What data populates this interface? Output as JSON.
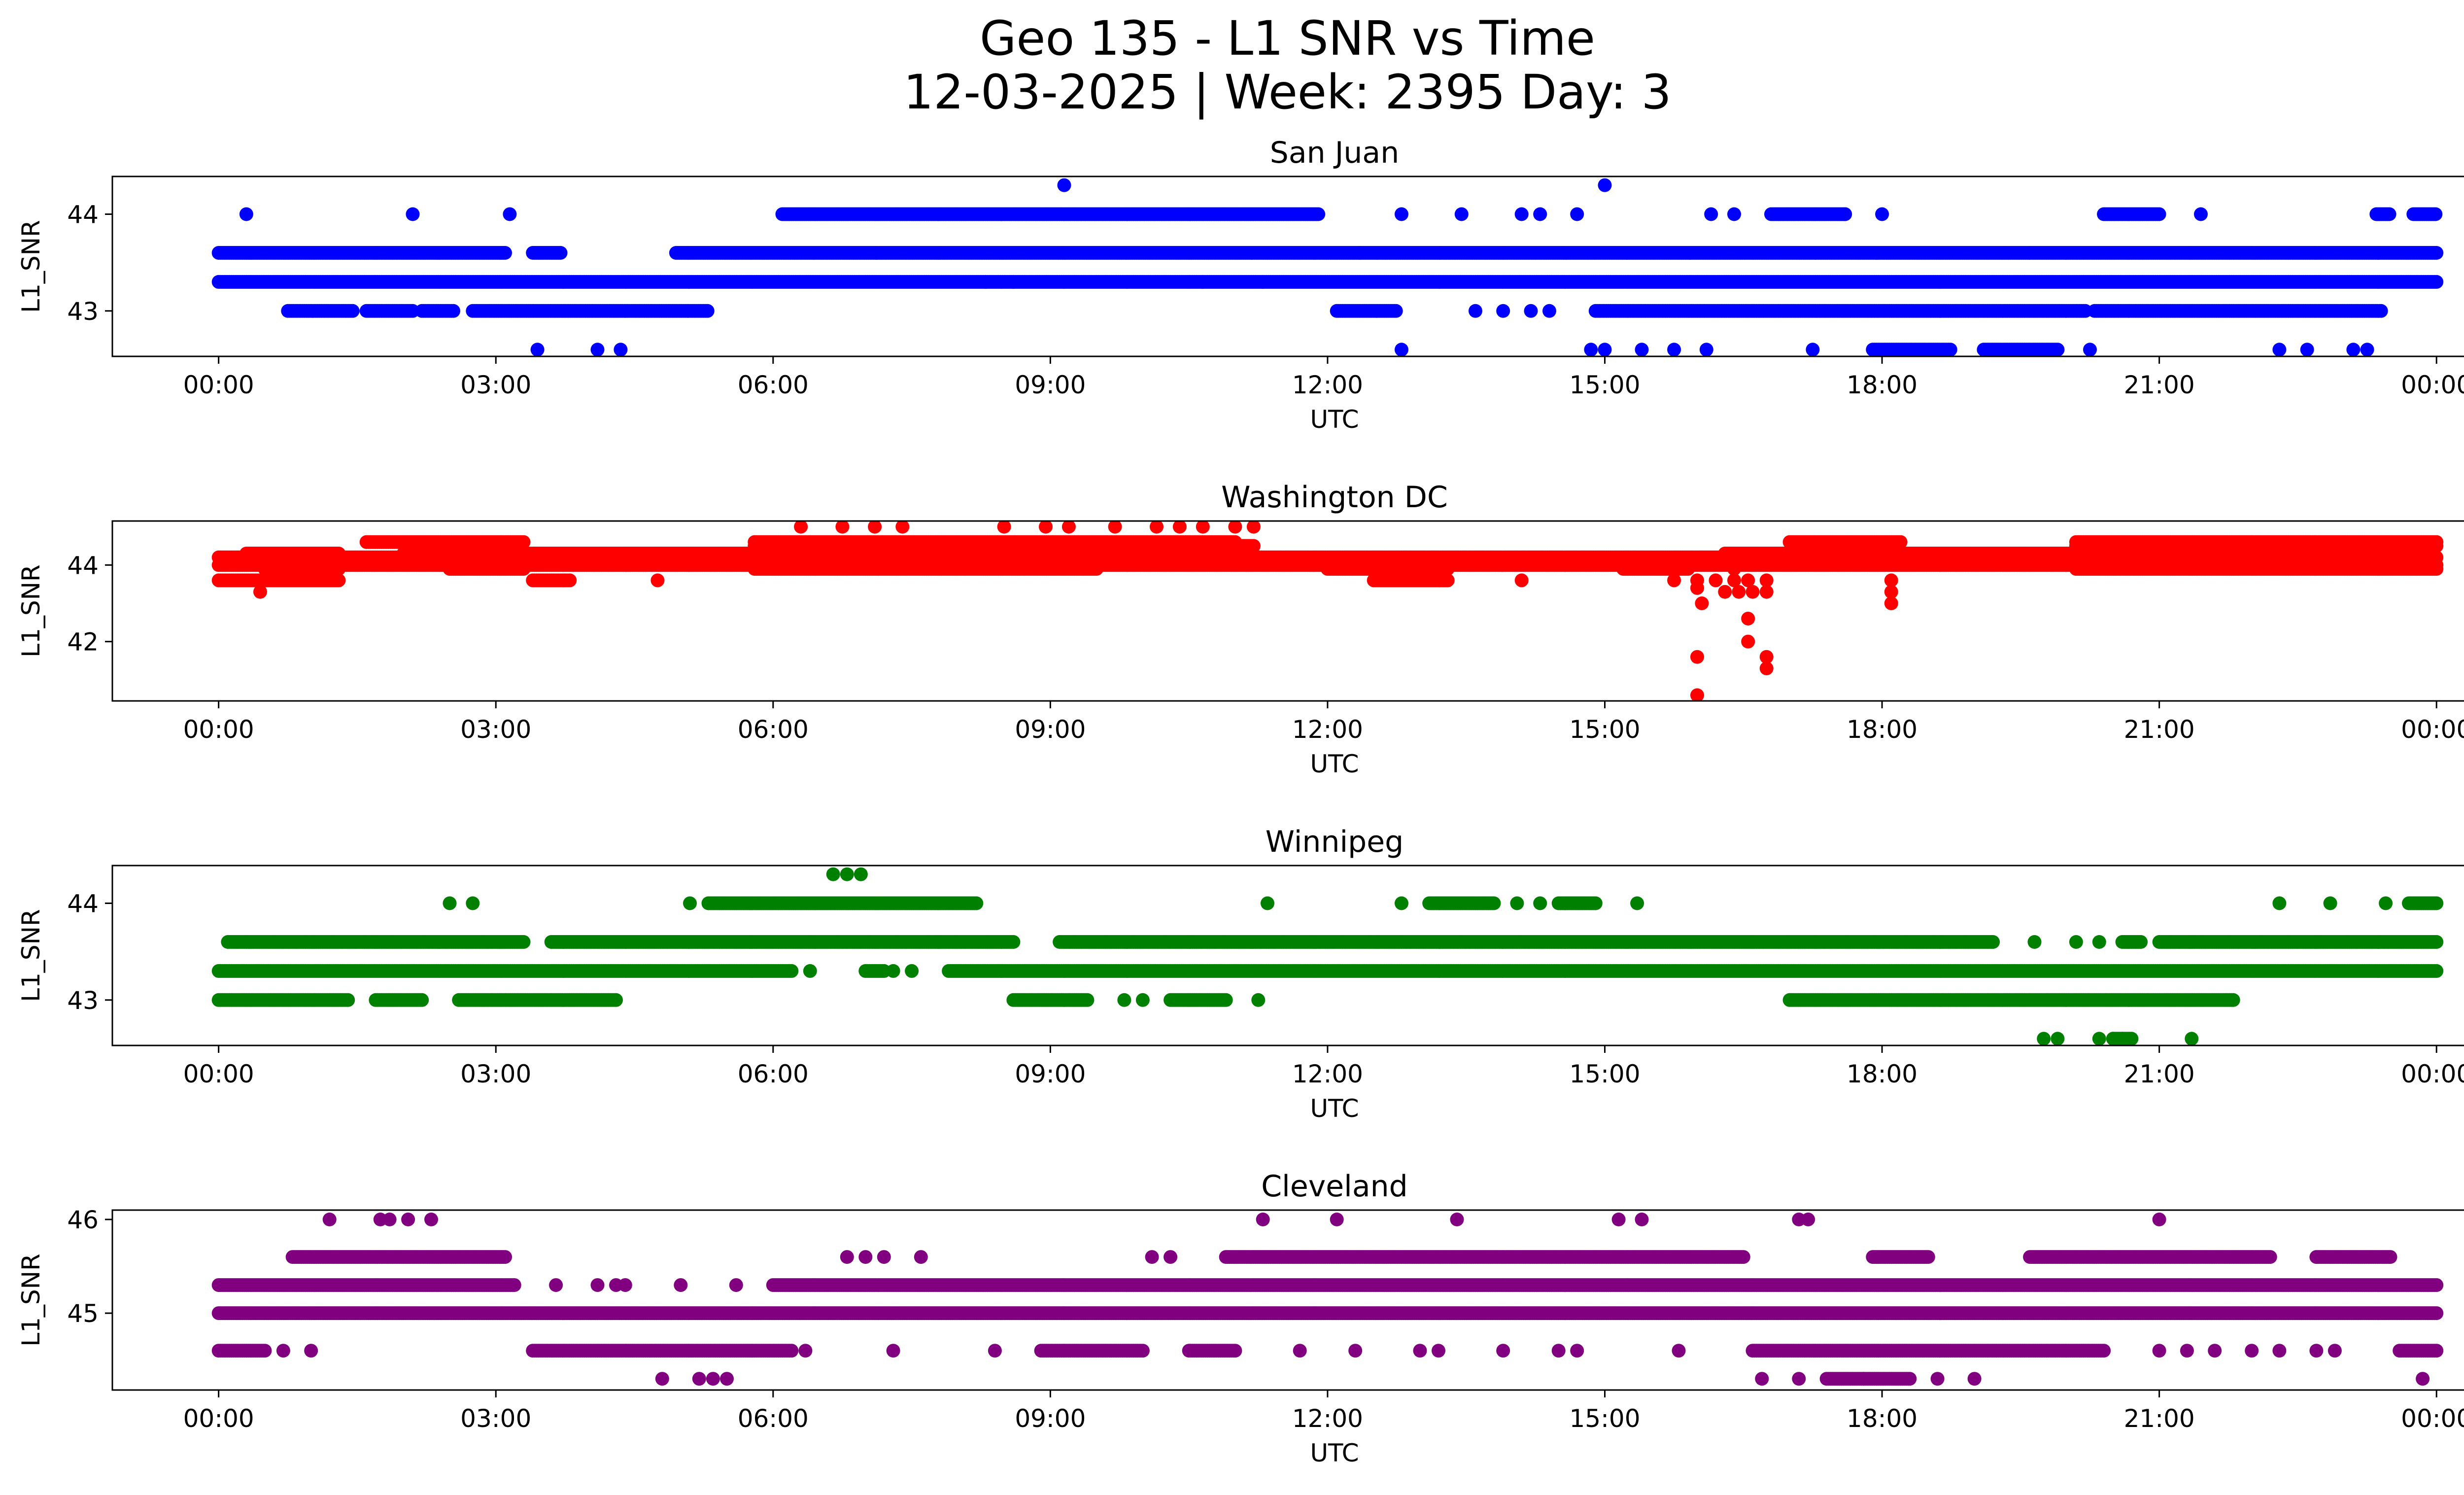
{
  "figure": {
    "title": "Geo 135 - L1 SNR vs Time",
    "subtitle": "12-03-2025 | Week: 2395 Day: 3"
  },
  "chart_data": [
    {
      "type": "scatter",
      "title": "San Juan",
      "xlabel": "UTC",
      "ylabel": "L1_SNR",
      "color": "#0000ff",
      "xticks": [
        "00:00",
        "03:00",
        "06:00",
        "09:00",
        "12:00",
        "15:00",
        "18:00",
        "21:00",
        "00:00"
      ],
      "x_range_hours": [
        -1.15,
        25.3
      ],
      "yticks": [
        43,
        44
      ],
      "ylim": [
        42.53,
        44.39
      ],
      "levels": [
        {
          "y": 43.3,
          "segments": [
            [
              0,
              24
            ]
          ]
        },
        {
          "y": 43.6,
          "segments": [
            [
              0,
              3.1
            ],
            [
              3.4,
              3.7
            ],
            [
              4.95,
              12.35
            ],
            [
              12.35,
              19.6
            ],
            [
              19.6,
              24
            ]
          ]
        },
        {
          "y": 43.0,
          "segments": [
            [
              0.75,
              1.45
            ],
            [
              1.6,
              2.1
            ],
            [
              2.2,
              2.55
            ],
            [
              2.75,
              5.3
            ],
            [
              12.1,
              12.75
            ],
            [
              14.9,
              20.2
            ],
            [
              20.3,
              23.4
            ]
          ]
        },
        {
          "y": 44.0,
          "segments": [
            [
              6.1,
              11.9
            ],
            [
              16.8,
              17.6
            ],
            [
              20.4,
              21.0
            ],
            [
              23.35,
              23.5
            ],
            [
              23.75,
              24
            ]
          ]
        },
        {
          "y": 42.6,
          "segments": [
            [
              17.9,
              18.75
            ],
            [
              19.1,
              19.9
            ]
          ]
        }
      ],
      "points": [
        {
          "x": 0.3,
          "y": 44.0
        },
        {
          "x": 2.1,
          "y": 44.0
        },
        {
          "x": 3.15,
          "y": 44.0
        },
        {
          "x": 12.8,
          "y": 44.0
        },
        {
          "x": 13.45,
          "y": 44.0
        },
        {
          "x": 14.1,
          "y": 44.0
        },
        {
          "x": 14.3,
          "y": 44.0
        },
        {
          "x": 14.7,
          "y": 44.0
        },
        {
          "x": 16.15,
          "y": 44.0
        },
        {
          "x": 16.4,
          "y": 44.0
        },
        {
          "x": 17.6,
          "y": 44.0
        },
        {
          "x": 18.0,
          "y": 44.0
        },
        {
          "x": 21.45,
          "y": 44.0
        },
        {
          "x": 9.15,
          "y": 44.3
        },
        {
          "x": 15.0,
          "y": 44.3
        },
        {
          "x": 3.45,
          "y": 42.6
        },
        {
          "x": 4.1,
          "y": 42.6
        },
        {
          "x": 4.35,
          "y": 42.6
        },
        {
          "x": 12.8,
          "y": 42.6
        },
        {
          "x": 14.85,
          "y": 42.6
        },
        {
          "x": 15.0,
          "y": 42.6
        },
        {
          "x": 15.4,
          "y": 42.6
        },
        {
          "x": 15.75,
          "y": 42.6
        },
        {
          "x": 16.1,
          "y": 42.6
        },
        {
          "x": 17.25,
          "y": 42.6
        },
        {
          "x": 20.25,
          "y": 42.6
        },
        {
          "x": 22.3,
          "y": 42.6
        },
        {
          "x": 22.6,
          "y": 42.6
        },
        {
          "x": 23.1,
          "y": 42.6
        },
        {
          "x": 23.25,
          "y": 42.6
        },
        {
          "x": 8.3,
          "y": 43.3
        },
        {
          "x": 8.6,
          "y": 43.3
        },
        {
          "x": 10.65,
          "y": 43.3
        },
        {
          "x": 11.3,
          "y": 43.3
        },
        {
          "x": 13.6,
          "y": 43.0
        },
        {
          "x": 13.9,
          "y": 43.0
        },
        {
          "x": 14.2,
          "y": 43.0
        },
        {
          "x": 14.4,
          "y": 43.0
        }
      ]
    },
    {
      "type": "scatter",
      "title": "Washington DC",
      "xlabel": "UTC",
      "ylabel": "L1_SNR",
      "color": "#ff0000",
      "xticks": [
        "00:00",
        "03:00",
        "06:00",
        "09:00",
        "12:00",
        "15:00",
        "18:00",
        "21:00",
        "00:00"
      ],
      "x_range_hours": [
        -1.15,
        25.3
      ],
      "yticks": [
        42,
        44
      ],
      "ylim": [
        40.45,
        45.15
      ],
      "levels": [
        {
          "y": 44.2,
          "segments": [
            [
              0,
              24
            ]
          ]
        },
        {
          "y": 44.0,
          "segments": [
            [
              0,
              24
            ]
          ]
        },
        {
          "y": 43.9,
          "segments": [
            [
              0.5,
              1.3
            ],
            [
              2.5,
              3.3
            ],
            [
              5.8,
              9.5
            ],
            [
              12.0,
              13.3
            ],
            [
              15.2,
              15.9
            ],
            [
              20.1,
              24
            ]
          ]
        },
        {
          "y": 43.6,
          "segments": [
            [
              0,
              1.3
            ],
            [
              3.4,
              3.8
            ],
            [
              12.5,
              13.3
            ]
          ]
        },
        {
          "y": 44.6,
          "segments": [
            [
              1.6,
              3.3
            ],
            [
              5.8,
              11.0
            ],
            [
              17.0,
              18.2
            ],
            [
              20.1,
              24
            ]
          ]
        },
        {
          "y": 44.5,
          "segments": [
            [
              5.8,
              11.2
            ],
            [
              20.1,
              24
            ]
          ]
        },
        {
          "y": 44.3,
          "segments": [
            [
              0.3,
              1.3
            ],
            [
              2.0,
              5.8
            ],
            [
              16.3,
              20.1
            ]
          ]
        }
      ],
      "points": [
        {
          "x": 0.45,
          "y": 43.3
        },
        {
          "x": 4.75,
          "y": 43.6
        },
        {
          "x": 14.1,
          "y": 43.6
        },
        {
          "x": 15.75,
          "y": 43.6
        },
        {
          "x": 6.3,
          "y": 45.0
        },
        {
          "x": 6.75,
          "y": 45.0
        },
        {
          "x": 7.1,
          "y": 45.0
        },
        {
          "x": 7.4,
          "y": 45.0
        },
        {
          "x": 8.5,
          "y": 45.0
        },
        {
          "x": 8.95,
          "y": 45.0
        },
        {
          "x": 9.2,
          "y": 45.0
        },
        {
          "x": 9.7,
          "y": 45.0
        },
        {
          "x": 10.15,
          "y": 45.0
        },
        {
          "x": 10.4,
          "y": 45.0
        },
        {
          "x": 10.65,
          "y": 45.0
        },
        {
          "x": 11.0,
          "y": 45.0
        },
        {
          "x": 11.2,
          "y": 45.0
        },
        {
          "x": 16.0,
          "y": 43.6
        },
        {
          "x": 16.0,
          "y": 43.4
        },
        {
          "x": 16.05,
          "y": 43.0
        },
        {
          "x": 16.0,
          "y": 41.6
        },
        {
          "x": 16.0,
          "y": 40.6
        },
        {
          "x": 16.2,
          "y": 43.6
        },
        {
          "x": 16.3,
          "y": 43.3
        },
        {
          "x": 16.4,
          "y": 43.6
        },
        {
          "x": 16.45,
          "y": 43.3
        },
        {
          "x": 16.4,
          "y": 43.9
        },
        {
          "x": 16.55,
          "y": 43.6
        },
        {
          "x": 16.55,
          "y": 42.6
        },
        {
          "x": 16.55,
          "y": 42.0
        },
        {
          "x": 16.6,
          "y": 43.3
        },
        {
          "x": 16.75,
          "y": 43.6
        },
        {
          "x": 16.75,
          "y": 43.3
        },
        {
          "x": 16.75,
          "y": 41.6
        },
        {
          "x": 16.75,
          "y": 41.3
        },
        {
          "x": 18.1,
          "y": 43.6
        },
        {
          "x": 18.1,
          "y": 43.3
        },
        {
          "x": 18.1,
          "y": 43.0
        }
      ]
    },
    {
      "type": "scatter",
      "title": "Winnipeg",
      "xlabel": "UTC",
      "ylabel": "L1_SNR",
      "color": "#008000",
      "xticks": [
        "00:00",
        "03:00",
        "06:00",
        "09:00",
        "12:00",
        "15:00",
        "18:00",
        "21:00",
        "00:00"
      ],
      "x_range_hours": [
        -1.15,
        25.3
      ],
      "yticks": [
        43,
        44
      ],
      "ylim": [
        42.53,
        44.39
      ],
      "levels": [
        {
          "y": 43.3,
          "segments": [
            [
              0,
              6.2
            ],
            [
              7.0,
              7.2
            ],
            [
              7.9,
              24
            ]
          ]
        },
        {
          "y": 43.6,
          "segments": [
            [
              0.1,
              3.3
            ],
            [
              3.6,
              8.6
            ],
            [
              9.1,
              19.2
            ],
            [
              20.6,
              20.8
            ],
            [
              21.0,
              24
            ]
          ]
        },
        {
          "y": 43.0,
          "segments": [
            [
              0,
              1.4
            ],
            [
              1.7,
              2.2
            ],
            [
              2.6,
              4.3
            ],
            [
              8.6,
              9.4
            ],
            [
              10.3,
              10.9
            ],
            [
              17.0,
              21.8
            ]
          ]
        },
        {
          "y": 44.0,
          "segments": [
            [
              5.3,
              8.2
            ],
            [
              13.1,
              13.8
            ],
            [
              14.5,
              14.9
            ],
            [
              23.7,
              24
            ]
          ]
        },
        {
          "y": 42.6,
          "segments": [
            [
              20.5,
              20.7
            ]
          ]
        }
      ],
      "points": [
        {
          "x": 2.5,
          "y": 44.0
        },
        {
          "x": 2.75,
          "y": 44.0
        },
        {
          "x": 5.1,
          "y": 44.0
        },
        {
          "x": 11.35,
          "y": 44.0
        },
        {
          "x": 12.8,
          "y": 44.0
        },
        {
          "x": 14.05,
          "y": 44.0
        },
        {
          "x": 14.3,
          "y": 44.0
        },
        {
          "x": 15.35,
          "y": 44.0
        },
        {
          "x": 22.3,
          "y": 44.0
        },
        {
          "x": 22.85,
          "y": 44.0
        },
        {
          "x": 23.45,
          "y": 44.0
        },
        {
          "x": 6.65,
          "y": 44.3
        },
        {
          "x": 6.8,
          "y": 44.3
        },
        {
          "x": 6.95,
          "y": 44.3
        },
        {
          "x": 6.4,
          "y": 43.3
        },
        {
          "x": 7.3,
          "y": 43.3
        },
        {
          "x": 7.5,
          "y": 43.3
        },
        {
          "x": 9.8,
          "y": 43.0
        },
        {
          "x": 10.0,
          "y": 43.0
        },
        {
          "x": 11.25,
          "y": 43.0
        },
        {
          "x": 19.75,
          "y": 42.6
        },
        {
          "x": 19.9,
          "y": 42.6
        },
        {
          "x": 20.35,
          "y": 42.6
        },
        {
          "x": 20.5,
          "y": 42.6
        },
        {
          "x": 20.6,
          "y": 42.6
        },
        {
          "x": 21.35,
          "y": 42.6
        },
        {
          "x": 19.65,
          "y": 43.6
        },
        {
          "x": 20.1,
          "y": 43.6
        },
        {
          "x": 20.35,
          "y": 43.6
        }
      ]
    },
    {
      "type": "scatter",
      "title": "Cleveland",
      "xlabel": "UTC",
      "ylabel": "L1_SNR",
      "color": "#800080",
      "xticks": [
        "00:00",
        "03:00",
        "06:00",
        "09:00",
        "12:00",
        "15:00",
        "18:00",
        "21:00",
        "00:00"
      ],
      "x_range_hours": [
        -1.15,
        25.3
      ],
      "yticks": [
        45,
        46
      ],
      "ylim": [
        44.18,
        46.1
      ],
      "levels": [
        {
          "y": 45.0,
          "segments": [
            [
              0,
              24
            ]
          ]
        },
        {
          "y": 45.3,
          "segments": [
            [
              0,
              3.2
            ],
            [
              6.0,
              24
            ]
          ]
        },
        {
          "y": 45.6,
          "segments": [
            [
              0.8,
              3.1
            ],
            [
              10.9,
              16.5
            ],
            [
              17.9,
              18.5
            ],
            [
              19.6,
              22.2
            ],
            [
              22.7,
              23.5
            ]
          ]
        },
        {
          "y": 44.6,
          "segments": [
            [
              0,
              0.5
            ],
            [
              3.4,
              6.2
            ],
            [
              8.9,
              10.0
            ],
            [
              10.5,
              11.0
            ],
            [
              16.6,
              20.4
            ],
            [
              23.6,
              24
            ]
          ]
        },
        {
          "y": 44.3,
          "segments": [
            [
              17.4,
              18.3
            ]
          ]
        }
      ],
      "points": [
        {
          "x": 1.2,
          "y": 46.0
        },
        {
          "x": 1.75,
          "y": 46.0
        },
        {
          "x": 1.85,
          "y": 46.0
        },
        {
          "x": 2.05,
          "y": 46.0
        },
        {
          "x": 2.3,
          "y": 46.0
        },
        {
          "x": 11.3,
          "y": 46.0
        },
        {
          "x": 12.1,
          "y": 46.0
        },
        {
          "x": 13.4,
          "y": 46.0
        },
        {
          "x": 15.15,
          "y": 46.0
        },
        {
          "x": 15.4,
          "y": 46.0
        },
        {
          "x": 17.1,
          "y": 46.0
        },
        {
          "x": 17.2,
          "y": 46.0
        },
        {
          "x": 21.0,
          "y": 46.0
        },
        {
          "x": 3.65,
          "y": 45.3
        },
        {
          "x": 4.1,
          "y": 45.3
        },
        {
          "x": 4.3,
          "y": 45.3
        },
        {
          "x": 4.4,
          "y": 45.3
        },
        {
          "x": 5.0,
          "y": 45.3
        },
        {
          "x": 5.6,
          "y": 45.3
        },
        {
          "x": 6.8,
          "y": 45.6
        },
        {
          "x": 7.0,
          "y": 45.6
        },
        {
          "x": 7.2,
          "y": 45.6
        },
        {
          "x": 7.6,
          "y": 45.6
        },
        {
          "x": 10.1,
          "y": 45.6
        },
        {
          "x": 10.3,
          "y": 45.6
        },
        {
          "x": 0.7,
          "y": 44.6
        },
        {
          "x": 1.0,
          "y": 44.6
        },
        {
          "x": 6.35,
          "y": 44.6
        },
        {
          "x": 7.3,
          "y": 44.6
        },
        {
          "x": 8.4,
          "y": 44.6
        },
        {
          "x": 11.7,
          "y": 44.6
        },
        {
          "x": 12.3,
          "y": 44.6
        },
        {
          "x": 13.0,
          "y": 44.6
        },
        {
          "x": 13.2,
          "y": 44.6
        },
        {
          "x": 13.9,
          "y": 44.6
        },
        {
          "x": 14.5,
          "y": 44.6
        },
        {
          "x": 14.7,
          "y": 44.6
        },
        {
          "x": 15.8,
          "y": 44.6
        },
        {
          "x": 21.0,
          "y": 44.6
        },
        {
          "x": 21.3,
          "y": 44.6
        },
        {
          "x": 21.6,
          "y": 44.6
        },
        {
          "x": 22.0,
          "y": 44.6
        },
        {
          "x": 22.3,
          "y": 44.6
        },
        {
          "x": 22.7,
          "y": 44.6
        },
        {
          "x": 22.9,
          "y": 44.6
        },
        {
          "x": 4.8,
          "y": 44.3
        },
        {
          "x": 5.2,
          "y": 44.3
        },
        {
          "x": 5.35,
          "y": 44.3
        },
        {
          "x": 5.5,
          "y": 44.3
        },
        {
          "x": 16.7,
          "y": 44.3
        },
        {
          "x": 17.1,
          "y": 44.3
        },
        {
          "x": 17.8,
          "y": 44.3
        },
        {
          "x": 18.6,
          "y": 44.3
        },
        {
          "x": 19.0,
          "y": 44.3
        },
        {
          "x": 23.85,
          "y": 44.3
        }
      ]
    }
  ]
}
